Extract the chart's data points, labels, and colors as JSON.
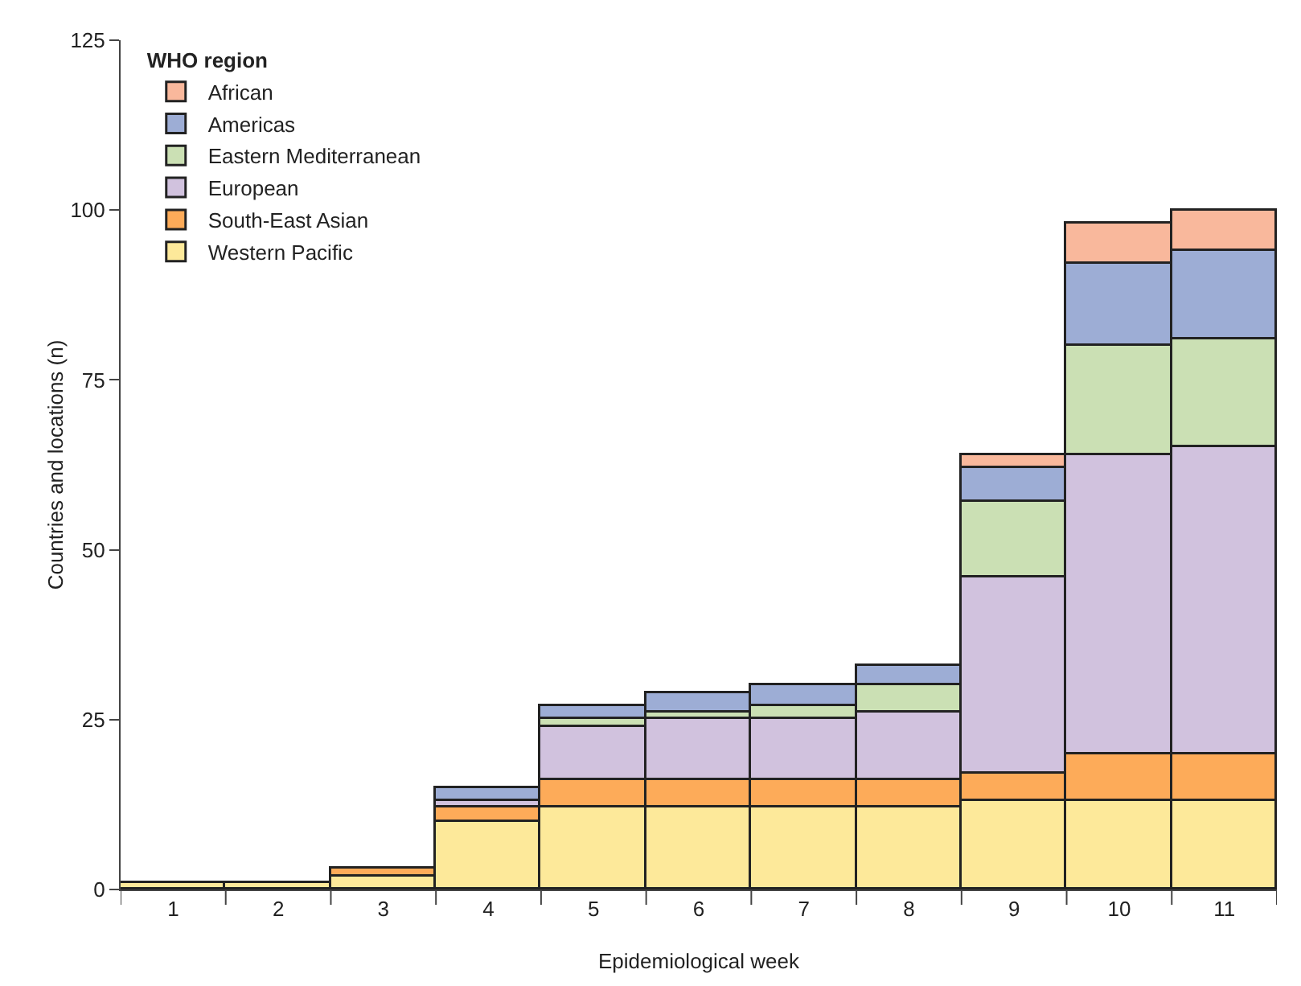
{
  "chart_data": {
    "type": "bar",
    "stacked": true,
    "xlabel": "Epidemiological week",
    "ylabel": "Countries and locations (n)",
    "legend_title": "WHO region",
    "legend": "top left",
    "grid": false,
    "categories": [
      "1",
      "2",
      "3",
      "4",
      "5",
      "6",
      "7",
      "8",
      "9",
      "10",
      "11"
    ],
    "ylim": [
      0,
      125
    ],
    "yticks": [
      0,
      25,
      50,
      75,
      100,
      125
    ],
    "series": [
      {
        "name": "Western Pacific",
        "color": "#fde99a",
        "values": [
          1,
          1,
          2,
          10,
          12,
          12,
          12,
          12,
          13,
          13,
          13
        ]
      },
      {
        "name": "South-East Asian",
        "color": "#fdab59",
        "values": [
          null,
          null,
          1,
          2,
          4,
          4,
          4,
          4,
          4,
          7,
          7
        ]
      },
      {
        "name": "European",
        "color": "#d1c2de",
        "values": [
          null,
          null,
          null,
          1,
          8,
          9,
          9,
          10,
          29,
          44,
          45
        ]
      },
      {
        "name": "Eastern Mediterranean",
        "color": "#cbe0b4",
        "values": [
          null,
          null,
          null,
          null,
          1,
          1,
          2,
          4,
          11,
          16,
          16
        ]
      },
      {
        "name": "Americas",
        "color": "#9dadd5",
        "values": [
          null,
          null,
          null,
          2,
          2,
          3,
          3,
          3,
          5,
          12,
          13
        ]
      },
      {
        "name": "African",
        "color": "#f9b89c",
        "values": [
          null,
          null,
          null,
          null,
          null,
          null,
          null,
          null,
          2,
          6,
          6
        ]
      }
    ]
  }
}
